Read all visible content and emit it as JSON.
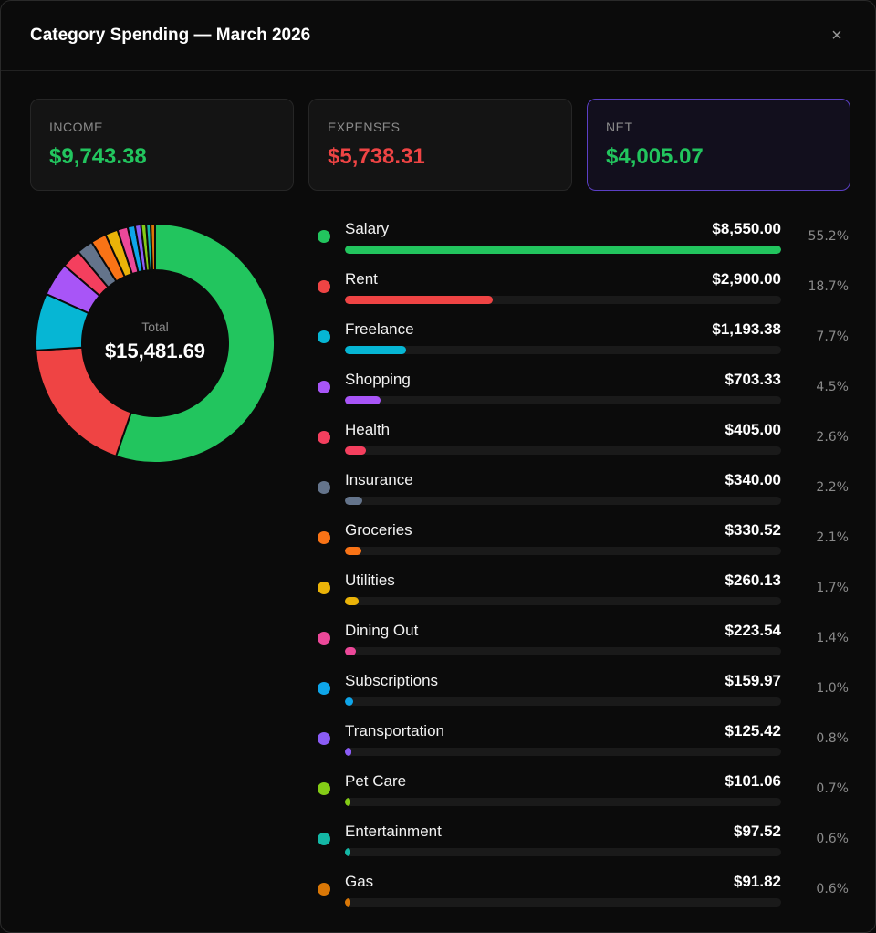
{
  "modal": {
    "title": "Category Spending — March 2026",
    "close_label": "×"
  },
  "summary": {
    "income": {
      "label": "INCOME",
      "value": "$9,743.38",
      "color": "#22c55e"
    },
    "expenses": {
      "label": "EXPENSES",
      "value": "$5,738.31",
      "color": "#ef4444"
    },
    "net": {
      "label": "NET",
      "value": "$4,005.07",
      "color": "#22c55e"
    }
  },
  "donut": {
    "total_label": "Total",
    "total_value": "$15,481.69"
  },
  "categories": [
    {
      "name": "Salary",
      "amount": "$8,550.00",
      "percent": "55.2%",
      "share": 0.552,
      "color": "#22c55e"
    },
    {
      "name": "Rent",
      "amount": "$2,900.00",
      "percent": "18.7%",
      "share": 0.187,
      "color": "#ef4444"
    },
    {
      "name": "Freelance",
      "amount": "$1,193.38",
      "percent": "7.7%",
      "share": 0.077,
      "color": "#06b6d4"
    },
    {
      "name": "Shopping",
      "amount": "$703.33",
      "percent": "4.5%",
      "share": 0.045,
      "color": "#a855f7"
    },
    {
      "name": "Health",
      "amount": "$405.00",
      "percent": "2.6%",
      "share": 0.026,
      "color": "#f43f5e"
    },
    {
      "name": "Insurance",
      "amount": "$340.00",
      "percent": "2.2%",
      "share": 0.022,
      "color": "#64748b"
    },
    {
      "name": "Groceries",
      "amount": "$330.52",
      "percent": "2.1%",
      "share": 0.021,
      "color": "#f97316"
    },
    {
      "name": "Utilities",
      "amount": "$260.13",
      "percent": "1.7%",
      "share": 0.017,
      "color": "#eab308"
    },
    {
      "name": "Dining Out",
      "amount": "$223.54",
      "percent": "1.4%",
      "share": 0.014,
      "color": "#ec4899"
    },
    {
      "name": "Subscriptions",
      "amount": "$159.97",
      "percent": "1.0%",
      "share": 0.01,
      "color": "#0ea5e9"
    },
    {
      "name": "Transportation",
      "amount": "$125.42",
      "percent": "0.8%",
      "share": 0.008,
      "color": "#8b5cf6"
    },
    {
      "name": "Pet Care",
      "amount": "$101.06",
      "percent": "0.7%",
      "share": 0.007,
      "color": "#84cc16"
    },
    {
      "name": "Entertainment",
      "amount": "$97.52",
      "percent": "0.6%",
      "share": 0.006,
      "color": "#14b8a6"
    },
    {
      "name": "Gas",
      "amount": "$91.82",
      "percent": "0.6%",
      "share": 0.006,
      "color": "#d97706"
    }
  ]
}
